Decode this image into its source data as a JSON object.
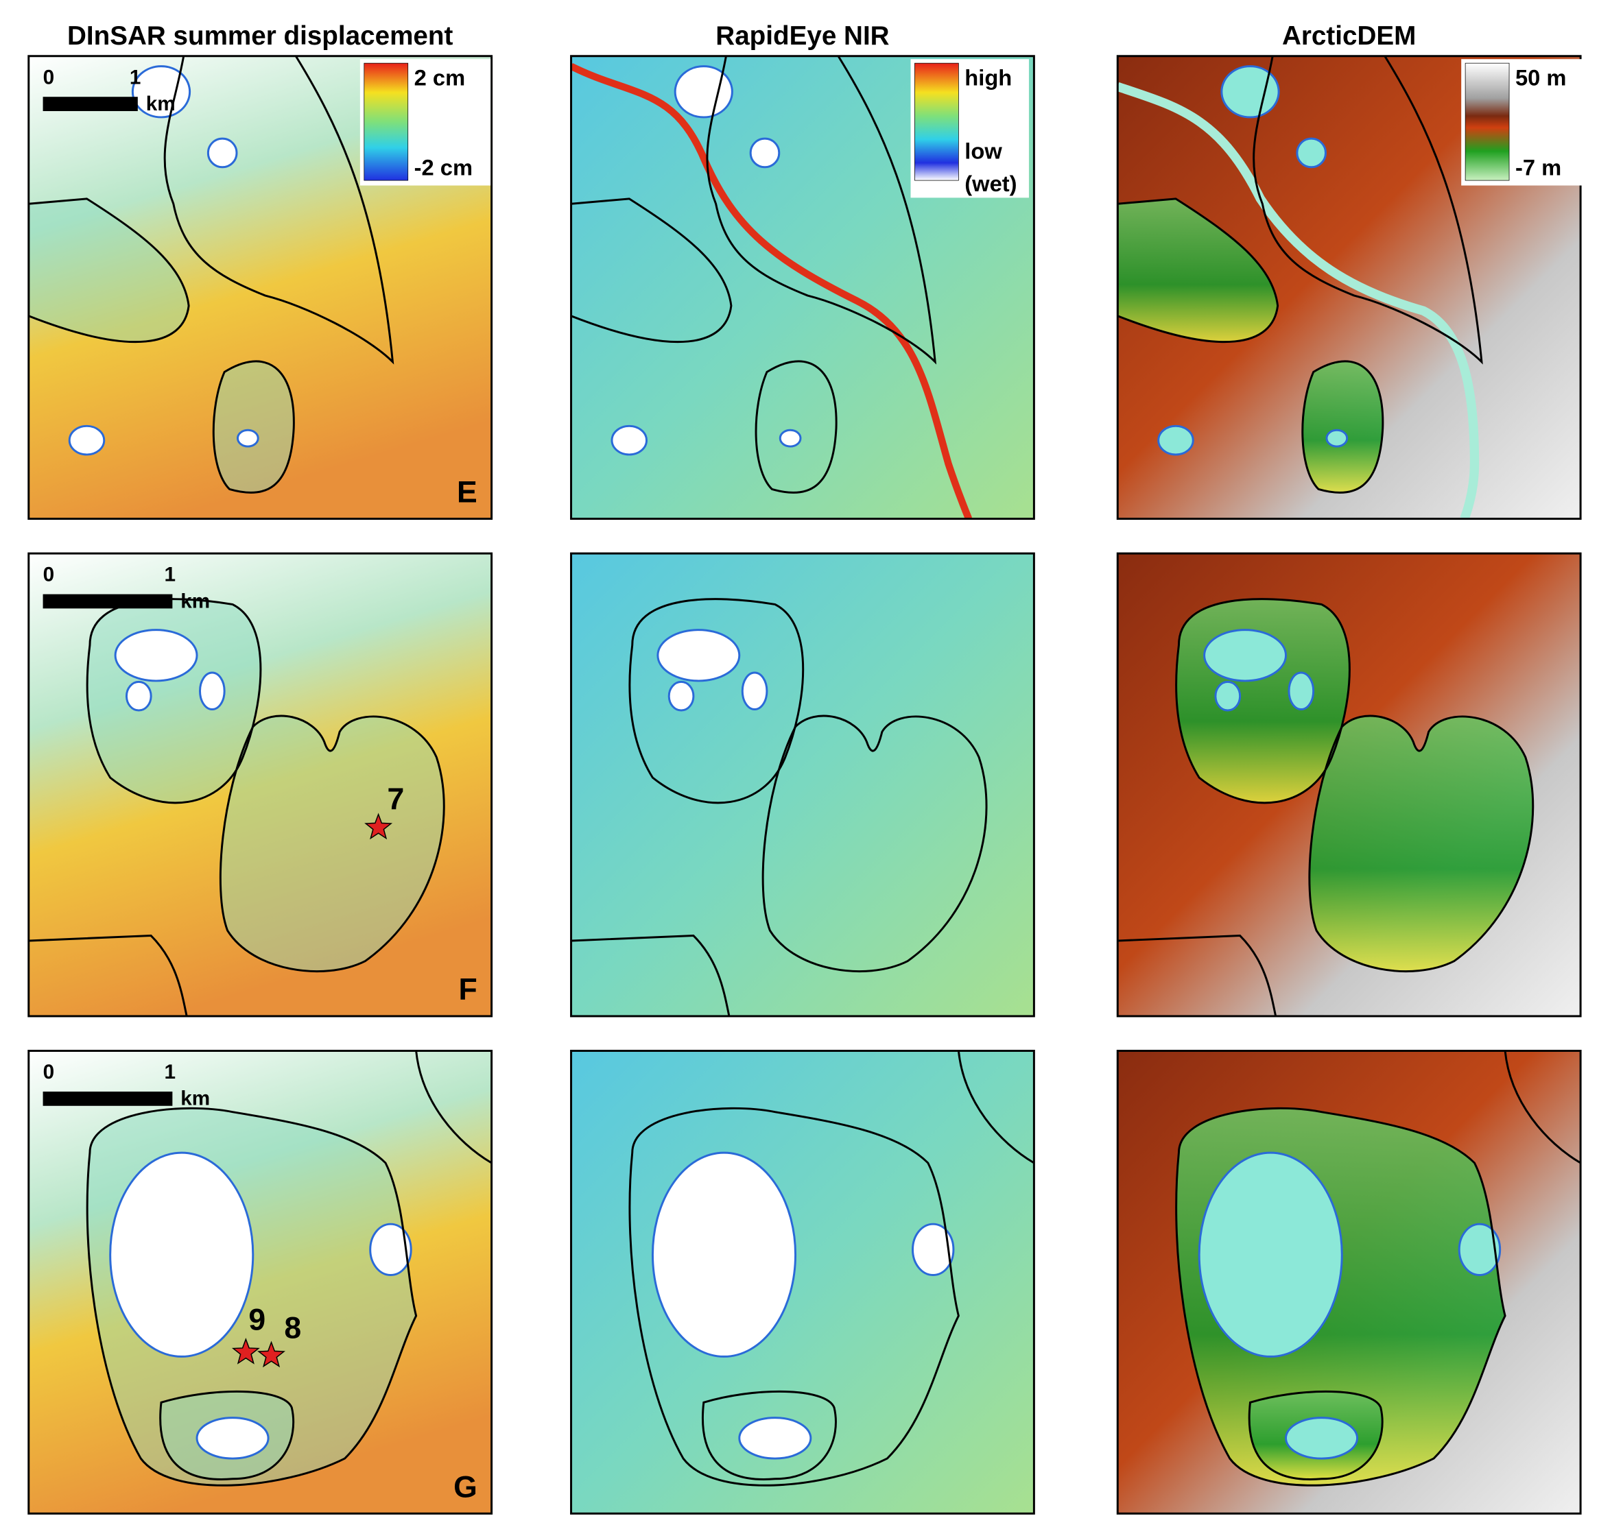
{
  "columns": [
    {
      "title": "DInSAR summer displacement",
      "colorbar": {
        "top": "2 cm",
        "bottom": "-2 cm"
      }
    },
    {
      "title": "RapidEye NIR",
      "colorbar": {
        "top": "high",
        "bottom": "low",
        "note": "(wet)"
      }
    },
    {
      "title": "ArcticDEM",
      "colorbar": {
        "top": "50 m",
        "bottom": "-7 m"
      }
    }
  ],
  "rows": [
    {
      "label": "E",
      "scalebar": {
        "start": "0",
        "end": "1",
        "unit": "km"
      },
      "stars": []
    },
    {
      "label": "F",
      "scalebar": {
        "start": "0",
        "end": "1",
        "unit": "km"
      },
      "stars": [
        "7"
      ]
    },
    {
      "label": "G",
      "scalebar": {
        "start": "0",
        "end": "1",
        "unit": "km"
      },
      "stars": [
        "9",
        "8"
      ]
    }
  ]
}
